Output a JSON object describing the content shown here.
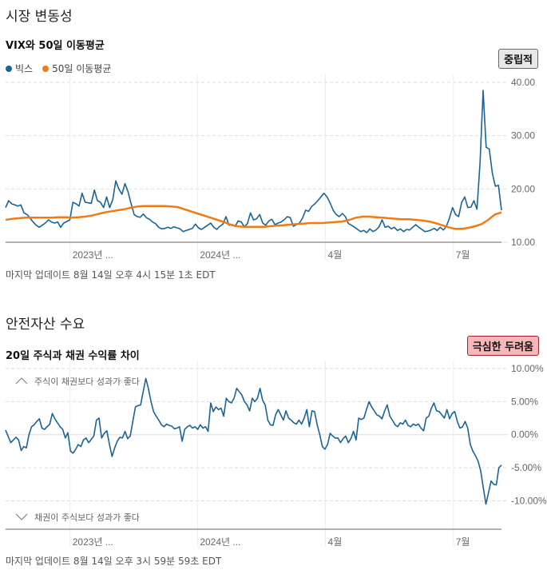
{
  "section1": {
    "title": "시장 변동성",
    "badge": "중립적",
    "updated": "마지막 업데이트 8월 14일 오후 4시 15분 1초 EDT"
  },
  "section2": {
    "title": "안전자산 수요",
    "badge": "극심한 두려움",
    "updated": "마지막 업데이트 8월 14일 오후 3시 59분 59초 EDT"
  },
  "colors": {
    "vix": "#1a6496",
    "ma": "#f07b14",
    "spread": "#1a6496",
    "grid": "#ddd"
  },
  "chart_data": [
    {
      "type": "line",
      "title": "VIX와 50일 이동평균",
      "legend": [
        "빅스",
        "50일 이동평균"
      ],
      "legend_position": "top-left",
      "x_ticks": [
        "2023년 ...",
        "2024년 ...",
        "4월",
        "7월"
      ],
      "x_tick_pos": [
        0.13,
        0.387,
        0.645,
        0.903
      ],
      "y_ticks": [
        "40.00",
        "30.00",
        "20.00",
        "10.00"
      ],
      "y_tick_values": [
        40,
        30,
        20,
        10
      ],
      "ylim": [
        10,
        40
      ],
      "series": [
        {
          "name": "빅스",
          "values": [
            16.5,
            17.8,
            17.2,
            17.0,
            16.8,
            17.0,
            15.5,
            15.2,
            14.5,
            13.8,
            13.2,
            12.8,
            13.2,
            13.6,
            14.2,
            13.8,
            13.6,
            13.8,
            12.8,
            13.6,
            13.9,
            14.2,
            17.5,
            17.2,
            16.8,
            19.2,
            17.5,
            17.4,
            17.3,
            19.8,
            17.8,
            17.5,
            16.5,
            18.5,
            16.5,
            18.0,
            21.5,
            20.0,
            19.0,
            21.0,
            19.5,
            17.2,
            15.2,
            14.8,
            14.7,
            15.3,
            14.6,
            14.3,
            13.8,
            13.5,
            12.8,
            12.5,
            12.6,
            12.8,
            12.6,
            12.9,
            12.7,
            12.5,
            12.0,
            12.2,
            12.4,
            12.6,
            13.4,
            12.7,
            12.4,
            12.8,
            13.2,
            13.6,
            12.8,
            12.4,
            13.0,
            13.4,
            14.8,
            13.2,
            13.3,
            13.0,
            14.0,
            13.8,
            12.9,
            13.5,
            15.5,
            14.2,
            14.4,
            15.2,
            13.6,
            13.2,
            14.0,
            14.3,
            13.3,
            13.6,
            13.8,
            14.2,
            14.8,
            14.6,
            13.0,
            13.3,
            13.6,
            14.5,
            16.0,
            15.8,
            16.7,
            17.2,
            17.8,
            18.5,
            19.2,
            18.5,
            17.4,
            16.0,
            15.2,
            14.8,
            15.4,
            14.8,
            13.5,
            13.2,
            12.8,
            12.4,
            12.0,
            12.2,
            11.8,
            12.5,
            12.0,
            12.3,
            12.9,
            14.2,
            12.8,
            13.0,
            12.5,
            12.8,
            12.2,
            12.5,
            12.0,
            12.4,
            12.3,
            12.8,
            13.3,
            12.8,
            12.4,
            12.0,
            12.1,
            12.3,
            12.6,
            12.2,
            12.8,
            12.3,
            13.0,
            14.5,
            16.5,
            15.2,
            14.8,
            17.5,
            18.5,
            16.5,
            16.6,
            17.8,
            16.2,
            25.0,
            38.5,
            27.8,
            27.5,
            23.0,
            20.5,
            20.7,
            16.0
          ]
        },
        {
          "name": "50일 이동평균",
          "values": [
            14.2,
            14.4,
            14.5,
            14.6,
            14.6,
            14.6,
            14.6,
            14.6,
            14.7,
            14.7,
            14.6,
            14.7,
            14.8,
            15.0,
            15.3,
            15.6,
            15.8,
            16.0,
            16.2,
            16.5,
            16.7,
            16.8,
            16.8,
            16.8,
            16.8,
            16.7,
            16.6,
            16.2,
            15.8,
            15.4,
            15.0,
            14.6,
            14.2,
            13.8,
            13.3,
            13.0,
            12.9,
            12.9,
            12.9,
            12.9,
            13.0,
            13.1,
            13.2,
            13.3,
            13.4,
            13.5,
            13.6,
            13.6,
            13.6,
            13.7,
            13.8,
            13.9,
            14.2,
            14.6,
            14.8,
            14.8,
            14.7,
            14.6,
            14.5,
            14.4,
            14.3,
            14.3,
            14.2,
            14.1,
            13.9,
            13.6,
            13.2,
            12.8,
            12.5,
            12.5,
            12.7,
            13.0,
            13.4,
            14.2,
            15.2,
            15.6
          ]
        }
      ]
    },
    {
      "type": "line",
      "title": "20일 주식과 채권 수익률 차이",
      "annotations": [
        "주식이 채권보다 성과가 좋다",
        "채권이 주식보다 성과가 좋다"
      ],
      "x_ticks": [
        "2023년 ...",
        "2024년 ...",
        "4월",
        "7월"
      ],
      "x_tick_pos": [
        0.13,
        0.387,
        0.645,
        0.903
      ],
      "y_ticks": [
        "10.00%",
        "5.00%",
        "0.00%",
        "-5.00%",
        "-10.00%"
      ],
      "y_tick_values": [
        10,
        5,
        0,
        -5,
        -10
      ],
      "ylim": [
        -12,
        10
      ],
      "series": [
        {
          "name": "20일 주식과 채권 수익률 차이",
          "values": [
            0.7,
            -0.3,
            -1.2,
            -0.8,
            -0.4,
            -0.8,
            -2.4,
            -1.8,
            -2.0,
            0.0,
            1.2,
            1.5,
            2.0,
            2.4,
            1.0,
            0.8,
            1.2,
            1.6,
            3.2,
            2.4,
            1.8,
            1.2,
            0.8,
            -0.5,
            0.3,
            -2.5,
            -2.8,
            -2.2,
            -1.5,
            -1.8,
            -0.8,
            -0.5,
            -1.2,
            -0.7,
            -0.2,
            2.2,
            2.5,
            -0.5,
            0.2,
            0.6,
            -1.5,
            -3.3,
            -2.0,
            -1.0,
            -0.4,
            -0.5,
            0.5,
            -0.6,
            -0.2,
            2.0,
            4.2,
            4.4,
            4.5,
            6.5,
            8.5,
            7.0,
            5.0,
            3.5,
            2.8,
            2.2,
            1.5,
            1.2,
            1.6,
            1.4,
            1.3,
            0.9,
            1.0,
            1.2,
            -1.0,
            0.8,
            1.2,
            1.4,
            1.0,
            1.2,
            0.8,
            1.5,
            1.0,
            1.2,
            0.5,
            4.8,
            3.5,
            4.2,
            3.8,
            4.0,
            2.8,
            5.5,
            5.0,
            4.8,
            5.5,
            7.0,
            6.5,
            6.0,
            5.0,
            4.5,
            3.6,
            5.5,
            5.0,
            5.5,
            7.0,
            5.2,
            4.5,
            2.2,
            1.5,
            1.4,
            3.0,
            3.8,
            3.0,
            2.2,
            3.6,
            2.5,
            2.2,
            1.8,
            1.6,
            2.2,
            1.6,
            2.5,
            3.8,
            1.2,
            3.6,
            3.5,
            1.5,
            0.0,
            -1.8,
            -2.2,
            -1.5,
            0.2,
            -0.2,
            -0.5,
            -0.5,
            -1.2,
            -0.6,
            -0.2,
            -1.2,
            -0.6,
            0.5,
            -0.8,
            2.5,
            2.3,
            2.5,
            3.8,
            5.0,
            4.2,
            3.6,
            3.0,
            2.8,
            2.4,
            3.6,
            4.5,
            2.8,
            2.2,
            1.5,
            1.2,
            1.8,
            1.6,
            2.2,
            1.4,
            1.2,
            1.6,
            1.4,
            1.6,
            1.0,
            0.6,
            2.5,
            2.8,
            4.0,
            4.8,
            3.6,
            3.5,
            3.0,
            2.5,
            3.8,
            2.4,
            3.2,
            3.5,
            2.0,
            1.0,
            1.2,
            2.0,
            1.0,
            -1.5,
            -2.5,
            -3.2,
            -4.0,
            -5.5,
            -8.0,
            -10.5,
            -8.8,
            -7.0,
            -7.5,
            -7.6,
            -5.0,
            -4.6
          ]
        }
      ]
    }
  ]
}
